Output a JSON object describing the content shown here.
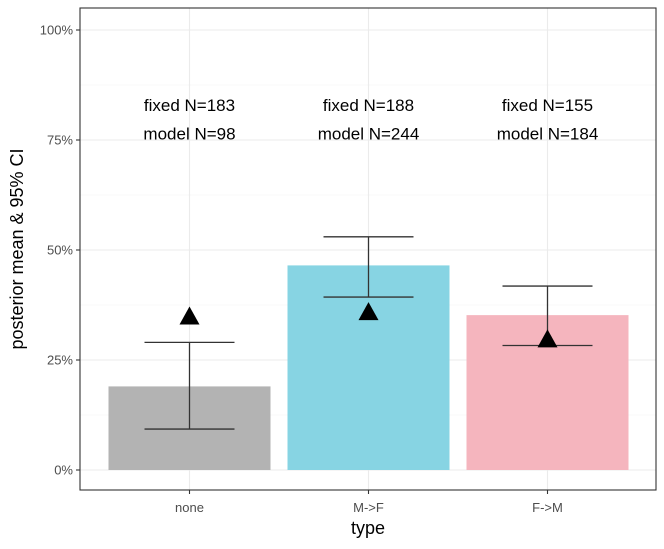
{
  "chart_data": {
    "type": "bar",
    "title": "",
    "xlabel": "type",
    "ylabel": "posterior mean & 95% CI",
    "categories": [
      "none",
      "M->F",
      "F->M"
    ],
    "values": [
      0.19,
      0.465,
      0.352
    ],
    "ci_lower": [
      0.093,
      0.393,
      0.283
    ],
    "ci_upper": [
      0.29,
      0.53,
      0.418
    ],
    "triangle_points": [
      0.35,
      0.36,
      0.298
    ],
    "ylim": [
      0,
      1
    ],
    "y_ticks": [
      0,
      0.25,
      0.5,
      0.75,
      1.0
    ],
    "y_tick_labels": [
      "0%",
      "25%",
      "50%",
      "75%",
      "100%"
    ],
    "bar_colors": [
      "#b3b3b3",
      "#87d4e3",
      "#f5b5be"
    ],
    "annotations": [
      {
        "line1": "fixed N=183",
        "line2": "model N=98"
      },
      {
        "line1": "fixed N=188",
        "line2": "model N=244"
      },
      {
        "line1": "fixed N=155",
        "line2": "model N=184"
      }
    ],
    "annotation_y": [
      0.83,
      0.765
    ],
    "grid": true
  }
}
